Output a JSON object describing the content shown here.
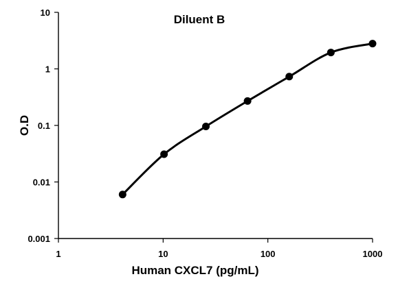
{
  "chart_data": {
    "type": "scatter",
    "title": "Diluent B",
    "xlabel": "Human CXCL7 (pg/mL)",
    "ylabel": "O.D",
    "xscale": "log",
    "yscale": "log",
    "xlim": [
      1,
      1000
    ],
    "ylim": [
      0.001,
      10
    ],
    "x_ticks": [
      1,
      10,
      100,
      1000
    ],
    "x_tick_labels": [
      "1",
      "10",
      "100",
      "1000"
    ],
    "y_ticks": [
      0.001,
      0.01,
      0.1,
      1,
      10
    ],
    "y_tick_labels": [
      "0.001",
      "0.01",
      "0.1",
      "1",
      "10"
    ],
    "grid": false,
    "legend": "none",
    "line_style": "smooth",
    "color": "#000000",
    "series": [
      {
        "x": [
          4.1,
          10.2,
          25.6,
          64,
          160,
          400,
          1000
        ],
        "y": [
          0.006,
          0.031,
          0.096,
          0.27,
          0.73,
          1.95,
          2.8
        ]
      }
    ]
  }
}
